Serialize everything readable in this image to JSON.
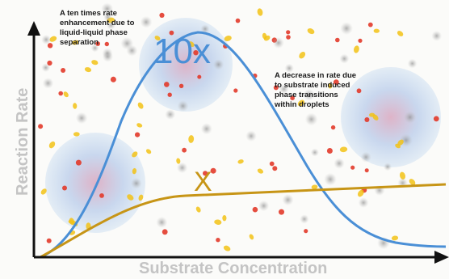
{
  "axes": {
    "x_label": "Substrate Concentration",
    "y_label": "Reaction Rate"
  },
  "annotations": {
    "enhancement_note": [
      "A ten times rate",
      "enhancement due to",
      "liquid-liquid phase",
      "separation"
    ],
    "decrease_note": [
      "A decrease in rate due",
      "to substrate induced",
      "phase transitions",
      "within droplets"
    ]
  },
  "curve_labels": {
    "peak": "10x",
    "baseline": "X"
  },
  "colors": {
    "axis": "#111111",
    "curve_peak": "#4a8fd6",
    "curve_baseline": "#c79516",
    "axis_label": "#c4c4c4",
    "droplet": "#b8d2ee",
    "red_particle": "#e23a2a",
    "yellow_particle": "#f2c216",
    "grey_particle": "#9a9a9a"
  }
}
